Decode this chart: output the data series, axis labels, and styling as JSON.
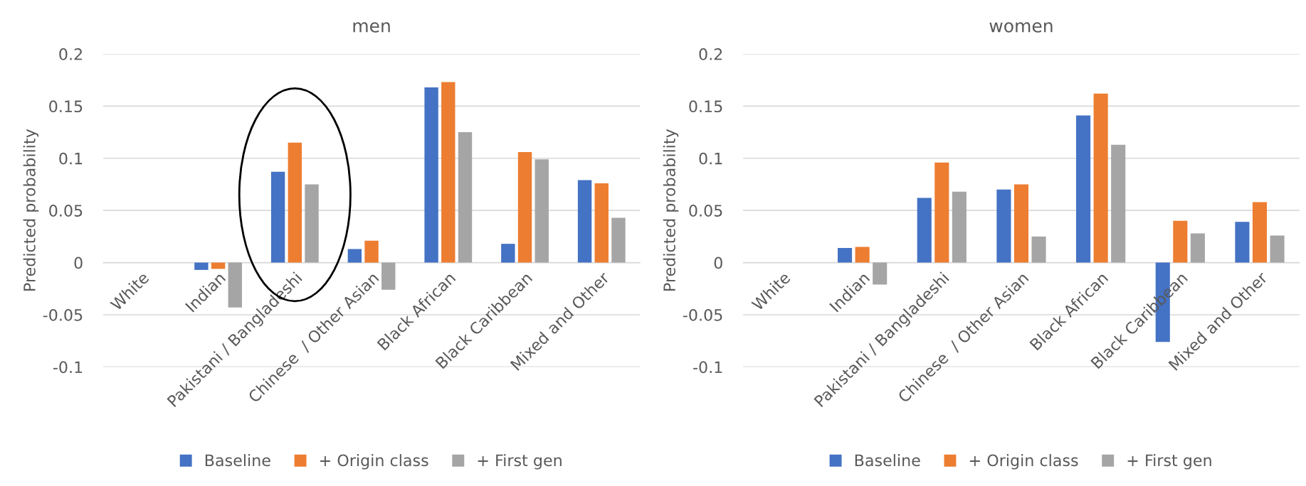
{
  "chart_data": [
    {
      "type": "bar",
      "title": "men",
      "ylabel": "Predicted probability",
      "categories": [
        "White",
        "Indian",
        "Pakistani / Bangladeshi",
        "Chinese  / Other Asian",
        "Black African",
        "Black Caribbean",
        "Mixed and Other"
      ],
      "series": [
        {
          "name": "Baseline",
          "color": "#4472c4",
          "values": [
            0,
            -0.007,
            0.087,
            0.013,
            0.168,
            0.018,
            0.079
          ]
        },
        {
          "name": "+ Origin class",
          "color": "#ed7d31",
          "values": [
            0,
            -0.006,
            0.115,
            0.021,
            0.173,
            0.106,
            0.076
          ]
        },
        {
          "name": "+ First gen",
          "color": "#a5a5a5",
          "values": [
            0,
            -0.043,
            0.075,
            -0.026,
            0.125,
            0.099,
            0.043
          ]
        }
      ],
      "ylim": [
        -0.1,
        0.2
      ],
      "yticks": [
        -0.1,
        -0.05,
        0,
        0.05,
        0.1,
        0.15,
        0.2
      ],
      "grid": "y",
      "legend": "bottom"
    },
    {
      "type": "bar",
      "title": "women",
      "ylabel": "Predicted probability",
      "categories": [
        "White",
        "Indian",
        "Pakistani / Bangladeshi",
        "Chinese  / Other Asian",
        "Black African",
        "Black Caribbean",
        "Mixed and Other"
      ],
      "series": [
        {
          "name": "Baseline",
          "color": "#4472c4",
          "values": [
            0,
            0.014,
            0.062,
            0.07,
            0.141,
            -0.076,
            0.039
          ]
        },
        {
          "name": "+ Origin class",
          "color": "#ed7d31",
          "values": [
            0,
            0.015,
            0.096,
            0.075,
            0.162,
            0.04,
            0.058
          ]
        },
        {
          "name": "+ First gen",
          "color": "#a5a5a5",
          "values": [
            0,
            -0.021,
            0.068,
            0.025,
            0.113,
            0.028,
            0.026
          ]
        }
      ],
      "ylim": [
        -0.1,
        0.2
      ],
      "yticks": [
        -0.1,
        -0.05,
        0,
        0.05,
        0.1,
        0.15,
        0.2
      ],
      "grid": "y",
      "legend": "bottom"
    }
  ]
}
